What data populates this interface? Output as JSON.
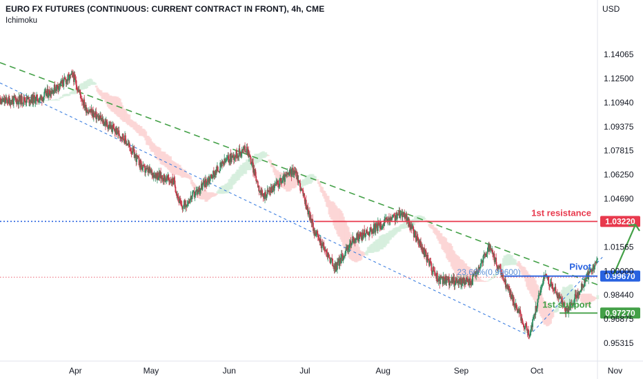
{
  "header": {
    "title": "EURO FX FUTURES (CONTINUOUS: CURRENT CONTRACT IN FRONT), 4h, CME",
    "indicator": "Ichimoku",
    "currency": "USD"
  },
  "colors": {
    "resistance": "#e8394d",
    "pivot": "#2862e0",
    "support": "#43a047",
    "trend_green": "#43a047",
    "trend_blue": "#3d7fe0",
    "up_candle": "#2f8f62",
    "down_candle": "#c8374a",
    "cloud_bull": "#d6eedd",
    "cloud_bear": "#fbd5d5"
  },
  "chart_data": {
    "type": "candlestick",
    "title": "EURO FX FUTURES (CONTINUOUS: CURRENT CONTRACT IN FRONT), 4h, CME",
    "ylabel": "USD",
    "ylim": [
      0.941,
      1.163
    ],
    "y_ticks": [
      "1.14065",
      "1.12500",
      "1.10940",
      "1.09375",
      "1.07815",
      "1.06250",
      "1.04690",
      "1.01565",
      "1.00000",
      "0.98440",
      "0.96875",
      "0.95315"
    ],
    "x_ticks": [
      "Apr",
      "May",
      "Jun",
      "Jul",
      "Aug",
      "Sep",
      "Oct",
      "Nov"
    ],
    "grid": false,
    "price_path": [
      {
        "t": "Mar 1",
        "v": 1.11
      },
      {
        "t": "Mar 18",
        "v": 1.112
      },
      {
        "t": "Mar 31",
        "v": 1.127
      },
      {
        "t": "Apr 5",
        "v": 1.106
      },
      {
        "t": "Apr 20",
        "v": 1.087
      },
      {
        "t": "Apr 28",
        "v": 1.066
      },
      {
        "t": "May 10",
        "v": 1.058
      },
      {
        "t": "May 13",
        "v": 1.041
      },
      {
        "t": "May 31",
        "v": 1.072
      },
      {
        "t": "Jun 8",
        "v": 1.08
      },
      {
        "t": "Jun 14",
        "v": 1.048
      },
      {
        "t": "Jun 27",
        "v": 1.066
      },
      {
        "t": "Jul 5",
        "v": 1.025
      },
      {
        "t": "Jul 13",
        "v": 1.002
      },
      {
        "t": "Jul 20",
        "v": 1.02
      },
      {
        "t": "Aug 9",
        "v": 1.038
      },
      {
        "t": "Aug 23",
        "v": 0.994
      },
      {
        "t": "Sep 5",
        "v": 0.993
      },
      {
        "t": "Sep 12",
        "v": 1.015
      },
      {
        "t": "Sep 22",
        "v": 0.98
      },
      {
        "t": "Sep 28",
        "v": 0.958
      },
      {
        "t": "Oct 4",
        "v": 0.998
      },
      {
        "t": "Oct 13",
        "v": 0.974
      },
      {
        "t": "Oct 27",
        "v": 1.012
      },
      {
        "t": "Oct 31",
        "v": 0.998
      }
    ],
    "levels": [
      {
        "label": "1st resistance",
        "price": "1.03220",
        "value": 1.0322,
        "role": "resistance"
      },
      {
        "label": "Pivot",
        "price": "0.99670",
        "value": 0.9967,
        "role": "pivot"
      },
      {
        "label": "1st support",
        "price": "0.97270",
        "value": 0.9727,
        "role": "support"
      }
    ],
    "fib_label": "23.60%(0.99600)",
    "trendlines": [
      {
        "name": "descending resistance",
        "from": {
          "t": "Mar 1",
          "v": 1.136
        },
        "to": {
          "t": "Nov 9",
          "v": 0.982
        }
      },
      {
        "name": "descending support",
        "from": {
          "t": "Mar 1",
          "v": 1.123
        },
        "to": {
          "t": "Sep 28",
          "v": 0.958
        }
      },
      {
        "name": "rising trend",
        "from": {
          "t": "Sep 28",
          "v": 0.958
        },
        "to": {
          "t": "Oct 27",
          "v": 1.009
        }
      }
    ],
    "projection": {
      "from": {
        "t": "Oct 31",
        "v": 0.998
      },
      "to": {
        "t": "Nov 8",
        "v": 1.031
      }
    }
  }
}
